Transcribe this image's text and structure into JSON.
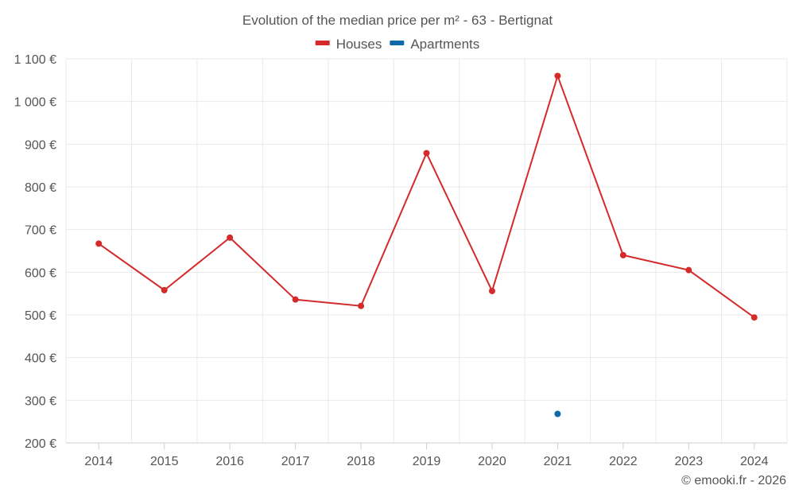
{
  "chart_data": {
    "type": "line",
    "title": "Evolution of the median price per m² - 63 - Bertignat",
    "categories": [
      "2014",
      "2015",
      "2016",
      "2017",
      "2018",
      "2019",
      "2020",
      "2021",
      "2022",
      "2023",
      "2024"
    ],
    "series": [
      {
        "name": "Houses",
        "color": "#d42a2a",
        "values": [
          667,
          558,
          681,
          536,
          521,
          879,
          556,
          1060,
          640,
          605,
          494
        ]
      },
      {
        "name": "Apartments",
        "color": "#0e6aa8",
        "values": [
          null,
          null,
          null,
          null,
          null,
          null,
          null,
          268,
          null,
          null,
          null
        ]
      }
    ],
    "ylim": [
      200,
      1100
    ],
    "yticks": [
      200,
      300,
      400,
      500,
      600,
      700,
      800,
      900,
      1000,
      1100
    ],
    "ytick_labels": [
      "200 €",
      "300 €",
      "400 €",
      "500 €",
      "600 €",
      "700 €",
      "800 €",
      "900 €",
      "1 000 €",
      "1 100 €"
    ],
    "xlabel": "",
    "ylabel": "",
    "grid": true,
    "legend_position": "top-center"
  },
  "credit": "© emooki.fr - 2026"
}
